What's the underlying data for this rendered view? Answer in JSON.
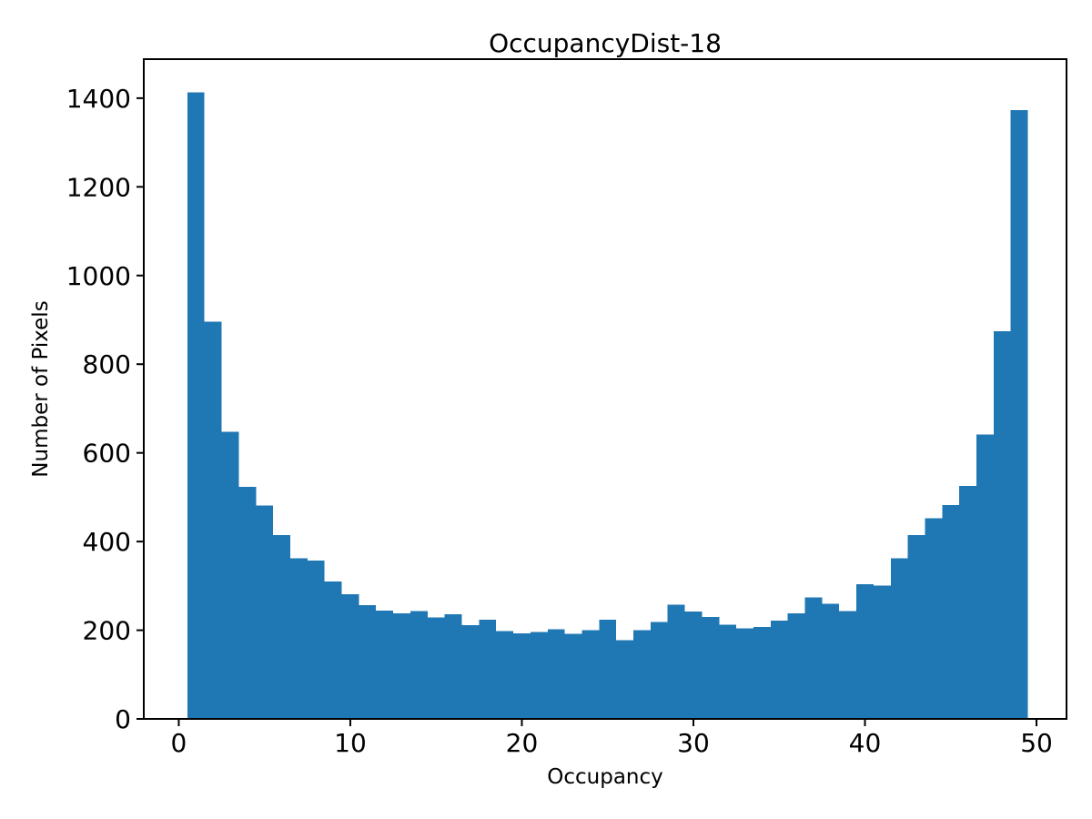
{
  "figure": {
    "background": "#ffffff",
    "spine_color": "#000000",
    "text_color": "#000000"
  },
  "chart_data": {
    "type": "bar",
    "subtype": "histogram",
    "title": "OccupancyDist-18",
    "xlabel": "Occupancy",
    "ylabel": "Number of Pixels",
    "bar_color": "#1f77b4",
    "bin_start": 0.5,
    "bin_width": 1,
    "bin_centers": [
      1,
      2,
      3,
      4,
      5,
      6,
      7,
      8,
      9,
      10,
      11,
      12,
      13,
      14,
      15,
      16,
      17,
      18,
      19,
      20,
      21,
      22,
      23,
      24,
      25,
      26,
      27,
      28,
      29,
      30,
      31,
      32,
      33,
      34,
      35,
      36,
      37,
      38,
      39,
      40,
      41,
      42,
      43,
      44,
      45,
      46,
      47,
      48,
      49
    ],
    "values": [
      1413,
      896,
      648,
      523,
      481,
      415,
      362,
      357,
      310,
      281,
      257,
      244,
      238,
      243,
      229,
      236,
      211,
      224,
      198,
      193,
      196,
      202,
      192,
      200,
      224,
      178,
      200,
      219,
      258,
      242,
      230,
      212,
      204,
      207,
      222,
      238,
      274,
      260,
      243,
      304,
      301,
      362,
      415,
      453,
      482,
      525,
      641,
      874,
      1373
    ],
    "xlim": [
      -2.04,
      51.75
    ],
    "ylim": [
      0,
      1488
    ],
    "xticks": [
      0,
      10,
      20,
      30,
      40,
      50
    ],
    "yticks": [
      0,
      200,
      400,
      600,
      800,
      1000,
      1200,
      1400
    ],
    "grid": false,
    "legend": null
  }
}
